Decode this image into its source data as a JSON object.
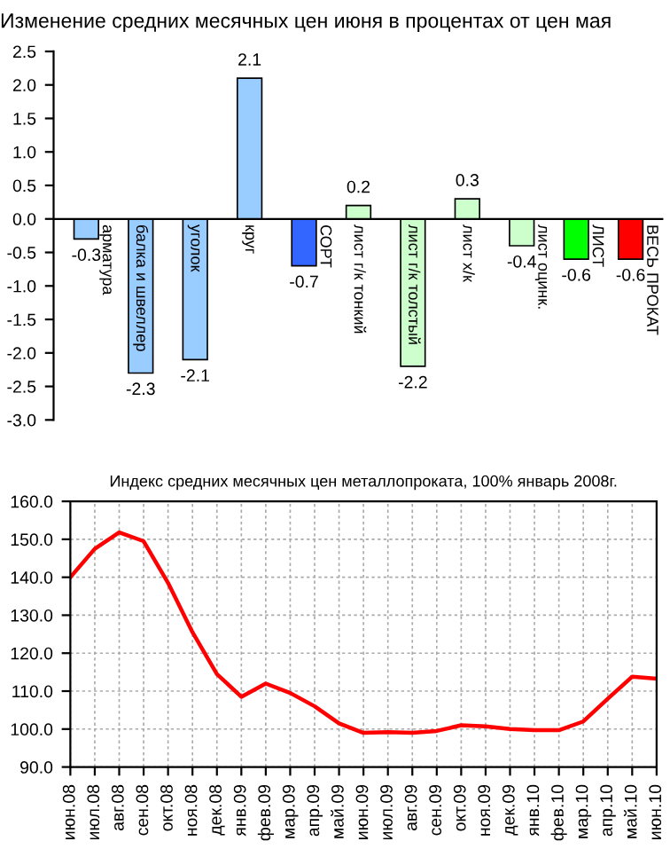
{
  "chart_data": [
    {
      "type": "bar",
      "title": "Изменение средних месячных цен июня в процентах от цен мая",
      "categories": [
        "арматура",
        "балка и швеллер",
        "уголок",
        "круг",
        "СОРТ",
        "лист г/к тонкий",
        "лист г/к толстый",
        "лист х/к",
        "лист оцинк.",
        "ЛИСТ",
        "ВЕСЬ ПРОКАТ"
      ],
      "values": [
        -0.3,
        -2.3,
        -2.1,
        2.1,
        -0.7,
        0.2,
        -2.2,
        0.3,
        -0.4,
        -0.6,
        -0.6
      ],
      "colors": [
        "#99ccff",
        "#99ccff",
        "#99ccff",
        "#99ccff",
        "#3366ff",
        "#ccffcc",
        "#ccffcc",
        "#ccffcc",
        "#ccffcc",
        "#00ff00",
        "#ff0000"
      ],
      "ylim": [
        -3.0,
        2.5
      ],
      "yticks": [
        {
          "value": -3.0,
          "label": "-3.0"
        },
        {
          "value": -2.5,
          "label": "-2.5"
        },
        {
          "value": -2.0,
          "label": "-2.0"
        },
        {
          "value": -1.5,
          "label": "-1.5"
        },
        {
          "value": -1.0,
          "label": "-1.0"
        },
        {
          "value": -0.5,
          "label": "-0.5"
        },
        {
          "value": 0.0,
          "label": "0.0"
        },
        {
          "value": 0.5,
          "label": "0.5"
        },
        {
          "value": 1.0,
          "label": "1.0"
        },
        {
          "value": 1.5,
          "label": "1.5"
        },
        {
          "value": 2.0,
          "label": "2.0"
        },
        {
          "value": 2.5,
          "label": "2.5"
        }
      ],
      "data_labels": true,
      "grid": false,
      "legend": false
    },
    {
      "type": "line",
      "title": "Индекс средних месячных цен металлопроката, 100% январь 2008г.",
      "categories": [
        "июн.08",
        "июл.08",
        "авг.08",
        "сен.08",
        "окт.08",
        "ноя.08",
        "дек.08",
        "янв.09",
        "фев.09",
        "мар.09",
        "апр.09",
        "май.09",
        "июн.09",
        "июл.09",
        "авг.09",
        "сен.09",
        "окт.09",
        "ноя.09",
        "дек.09",
        "янв.10",
        "фев.10",
        "мар.10",
        "апр.10",
        "май.10",
        "июн.10"
      ],
      "series": [
        {
          "color": "#ff0000",
          "values": [
            140,
            147.5,
            151.8,
            149.5,
            138.5,
            125.5,
            114.5,
            108.5,
            112,
            109.5,
            106,
            101.5,
            99,
            99.2,
            99,
            99.5,
            101,
            100.7,
            100,
            99.7,
            99.7,
            102,
            108,
            113.8,
            113.3
          ]
        }
      ],
      "ylim": [
        90,
        160
      ],
      "yticks": [
        {
          "value": 90,
          "label": "90.0"
        },
        {
          "value": 100,
          "label": "100.0"
        },
        {
          "value": 110,
          "label": "110.0"
        },
        {
          "value": 120,
          "label": "120.0"
        },
        {
          "value": 130,
          "label": "130.0"
        },
        {
          "value": 140,
          "label": "140.0"
        },
        {
          "value": 150,
          "label": "150.0"
        },
        {
          "value": 160,
          "label": "160.0"
        }
      ],
      "grid": true,
      "legend": false,
      "line_style": "solid",
      "marker": "none"
    }
  ]
}
